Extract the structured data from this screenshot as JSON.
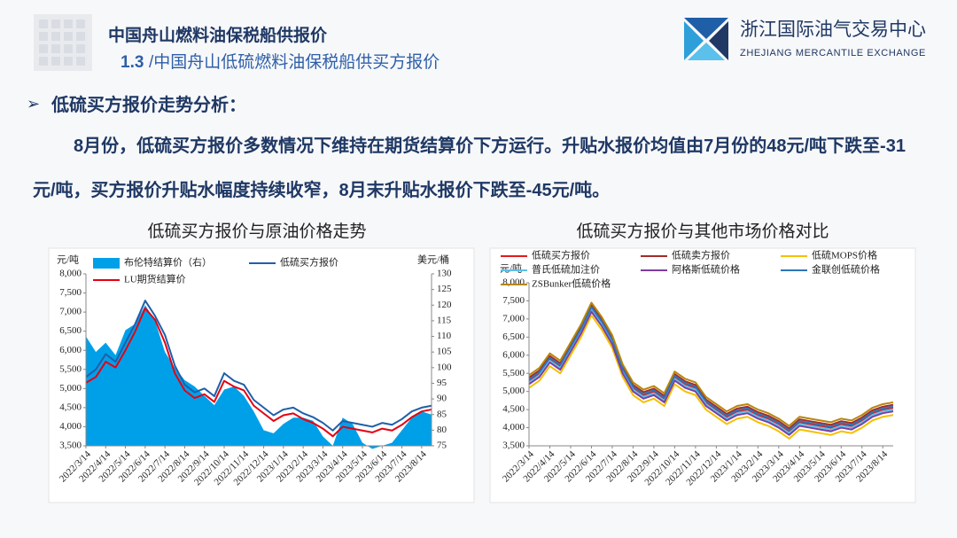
{
  "header": {
    "title": "中国舟山燃料油保税船供报价",
    "section_number": "1.3",
    "section_title": "/中国舟山低硫燃料油保税船供买方报价",
    "logo_cn": "浙江国际油气交易中心",
    "logo_en": "ZHEJIANG MERCANTILE EXCHANGE"
  },
  "body": {
    "heading": "低硫买方报价走势分析：",
    "paragraph": "8月份，低硫买方报价多数情况下维持在期货结算价下方运行。升贴水报价均值由7月份的48元/吨下跌至-31元/吨，买方报价升贴水幅度持续收窄，8月末升贴水报价下跌至-45元/吨。"
  },
  "chart_data": [
    {
      "type": "line",
      "title": "低硫买方报价与原油价格走势",
      "ylabel": "元/吨",
      "y2label": "美元/桶",
      "legend": "top",
      "grid": false,
      "categories": [
        "2022/3/14",
        null,
        "2022/4/14",
        null,
        "2022/5/14",
        null,
        "2022/6/14",
        null,
        "2022/7/14",
        null,
        "2022/8/14",
        null,
        "2022/9/14",
        null,
        "2022/10/14",
        null,
        "2022/11/14",
        null,
        "2022/12/14",
        null,
        "2023/1/14",
        null,
        "2023/2/14",
        null,
        "2023/3/14",
        null,
        "2023/4/14",
        null,
        "2023/5/14",
        null,
        "2023/6/14",
        null,
        "2023/7/14",
        null,
        "2023/8/14",
        null
      ],
      "ylim": [
        3500,
        8000
      ],
      "yticks": [
        {
          "value": 3500,
          "label": "3,500"
        },
        {
          "value": 4000,
          "label": "4,000"
        },
        {
          "value": 4500,
          "label": "4,500"
        },
        {
          "value": 5000,
          "label": "5,000"
        },
        {
          "value": 5500,
          "label": "5,500"
        },
        {
          "value": 6000,
          "label": "6,000"
        },
        {
          "value": 6500,
          "label": "6,500"
        },
        {
          "value": 7000,
          "label": "7,000"
        },
        {
          "value": 7500,
          "label": "7,500"
        },
        {
          "value": 8000,
          "label": "8,000"
        }
      ],
      "y2lim": [
        75,
        130
      ],
      "y2ticks": [
        75,
        80,
        85,
        90,
        95,
        100,
        105,
        110,
        115,
        120,
        125,
        130
      ],
      "series": [
        {
          "name": "布伦特结算价（右）",
          "color": "#00a0e9",
          "style": "area",
          "axis": "y2",
          "values": [
            110,
            105,
            108,
            104,
            112,
            114,
            120,
            115,
            105,
            100,
            96,
            94,
            91,
            88,
            93,
            94,
            91,
            86,
            80,
            79,
            82,
            84,
            84,
            83,
            78,
            75,
            84,
            82,
            76,
            74,
            75,
            76,
            80,
            84,
            86,
            85
          ]
        },
        {
          "name": "低硫买方报价",
          "color": "#1f5fa8",
          "style": "line",
          "values": [
            5300,
            5500,
            5900,
            5700,
            6200,
            6700,
            7300,
            6900,
            6400,
            5600,
            5100,
            4900,
            5000,
            4800,
            5400,
            5200,
            5100,
            4700,
            4500,
            4300,
            4450,
            4500,
            4350,
            4250,
            4100,
            3900,
            4150,
            4100,
            4050,
            4000,
            4100,
            4050,
            4200,
            4400,
            4500,
            4550
          ]
        },
        {
          "name": "LU期货结算价",
          "color": "#e60012",
          "style": "line",
          "values": [
            5150,
            5300,
            5700,
            5550,
            6000,
            6500,
            7100,
            6800,
            6200,
            5400,
            4950,
            4750,
            4850,
            4650,
            5200,
            5050,
            4950,
            4550,
            4350,
            4150,
            4300,
            4350,
            4200,
            4100,
            3950,
            3750,
            4000,
            3950,
            3900,
            3850,
            3950,
            3900,
            4050,
            4250,
            4400,
            4450
          ]
        }
      ]
    },
    {
      "type": "line",
      "title": "低硫买方报价与其他市场价格对比",
      "ylabel": "元/吨",
      "legend": "top",
      "grid": false,
      "categories": [
        "2022/3/14",
        null,
        "2022/4/14",
        null,
        "2022/5/14",
        null,
        "2022/6/14",
        null,
        "2022/7/14",
        null,
        "2022/8/14",
        null,
        "2022/9/14",
        null,
        "2022/10/14",
        null,
        "2022/11/14",
        null,
        "2022/12/14",
        null,
        "2023/1/14",
        null,
        "2023/2/14",
        null,
        "2023/3/14",
        null,
        "2023/4/14",
        null,
        "2023/5/14",
        null,
        "2023/6/14",
        null,
        "2023/7/14",
        null,
        "2023/8/14",
        null
      ],
      "ylim": [
        3500,
        8000
      ],
      "yticks": [
        {
          "value": 3500,
          "label": "3,500"
        },
        {
          "value": 4000,
          "label": "4,000"
        },
        {
          "value": 4500,
          "label": "4,500"
        },
        {
          "value": 5000,
          "label": "5,000"
        },
        {
          "value": 5500,
          "label": "5,500"
        },
        {
          "value": 6000,
          "label": "6,000"
        },
        {
          "value": 6500,
          "label": "6,500"
        },
        {
          "value": 7000,
          "label": "7,000"
        },
        {
          "value": 7500,
          "label": "7,500"
        },
        {
          "value": 8000,
          "label": "8,000"
        }
      ],
      "series": [
        {
          "name": "低硫买方报价",
          "color": "#e41a1c",
          "style": "line",
          "values": [
            5300,
            5500,
            5900,
            5700,
            6200,
            6700,
            7300,
            6900,
            6400,
            5600,
            5100,
            4900,
            5000,
            4800,
            5400,
            5200,
            5100,
            4700,
            4500,
            4300,
            4450,
            4500,
            4350,
            4250,
            4100,
            3900,
            4150,
            4100,
            4050,
            4000,
            4100,
            4050,
            4200,
            4400,
            4500,
            4550
          ]
        },
        {
          "name": "低硫卖方报价",
          "color": "#a52a2a",
          "style": "line",
          "values": [
            5380,
            5580,
            5980,
            5780,
            6280,
            6780,
            7380,
            6980,
            6480,
            5680,
            5180,
            4980,
            5080,
            4880,
            5480,
            5280,
            5180,
            4780,
            4580,
            4380,
            4530,
            4580,
            4430,
            4330,
            4180,
            3980,
            4230,
            4180,
            4130,
            4080,
            4180,
            4130,
            4280,
            4480,
            4580,
            4630
          ]
        },
        {
          "name": "低硫MOPS价格",
          "color": "#f5c000",
          "style": "line",
          "values": [
            5100,
            5300,
            5700,
            5500,
            6000,
            6500,
            7100,
            6700,
            6200,
            5400,
            4900,
            4700,
            4800,
            4600,
            5200,
            5000,
            4900,
            4500,
            4300,
            4100,
            4250,
            4300,
            4150,
            4050,
            3900,
            3700,
            3950,
            3900,
            3850,
            3800,
            3900,
            3850,
            4000,
            4200,
            4300,
            4350
          ]
        },
        {
          "name": "普氏低硫加注价",
          "color": "#5bc0eb",
          "style": "line",
          "values": [
            5250,
            5450,
            5850,
            5650,
            6150,
            6650,
            7250,
            6850,
            6350,
            5550,
            5050,
            4850,
            4950,
            4750,
            5350,
            5150,
            5050,
            4650,
            4450,
            4250,
            4400,
            4450,
            4300,
            4200,
            4050,
            3850,
            4100,
            4050,
            4000,
            3950,
            4050,
            4000,
            4150,
            4350,
            4450,
            4500
          ]
        },
        {
          "name": "阿格斯低硫价格",
          "color": "#7b3fa0",
          "style": "line",
          "values": [
            5200,
            5400,
            5800,
            5600,
            6100,
            6600,
            7200,
            6800,
            6300,
            5500,
            5000,
            4800,
            4900,
            4700,
            5300,
            5100,
            5000,
            4600,
            4400,
            4200,
            4350,
            4400,
            4250,
            4150,
            4000,
            3800,
            4050,
            4000,
            3950,
            3900,
            4000,
            3950,
            4100,
            4300,
            4400,
            4450
          ]
        },
        {
          "name": "金联创低硫价格",
          "color": "#2e75b6",
          "style": "line",
          "values": [
            5330,
            5530,
            5930,
            5730,
            6230,
            6730,
            7330,
            6930,
            6430,
            5630,
            5130,
            4930,
            5030,
            4830,
            5430,
            5230,
            5130,
            4730,
            4530,
            4330,
            4480,
            4530,
            4380,
            4280,
            4130,
            3930,
            4180,
            4130,
            4080,
            4030,
            4130,
            4080,
            4230,
            4430,
            4530,
            4580
          ]
        },
        {
          "name": "ZSBunker低硫价格",
          "color": "#b8860b",
          "style": "line",
          "values": [
            5450,
            5650,
            6050,
            5850,
            6350,
            6850,
            7450,
            7050,
            6550,
            5750,
            5250,
            5050,
            5150,
            4950,
            5550,
            5350,
            5250,
            4850,
            4650,
            4450,
            4600,
            4650,
            4500,
            4400,
            4250,
            4050,
            4300,
            4250,
            4200,
            4150,
            4250,
            4200,
            4350,
            4550,
            4650,
            4700
          ]
        }
      ]
    }
  ]
}
